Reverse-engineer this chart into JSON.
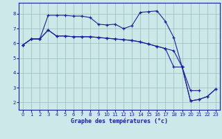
{
  "xlabel": "Graphe des températures (°c)",
  "background_color": "#cce8e8",
  "line_color": "#1c1c99",
  "grid_color": "#99bbbb",
  "hours": [
    0,
    1,
    2,
    3,
    4,
    5,
    6,
    7,
    8,
    9,
    10,
    11,
    12,
    13,
    14,
    15,
    16,
    17,
    18,
    19,
    20,
    21,
    22,
    23
  ],
  "series1": [
    5.9,
    6.3,
    6.3,
    7.9,
    7.9,
    7.9,
    7.85,
    7.85,
    7.75,
    7.3,
    7.25,
    7.3,
    7.0,
    7.2,
    8.1,
    8.15,
    8.2,
    7.5,
    6.4,
    4.4,
    2.8,
    2.8,
    null,
    null
  ],
  "series2": [
    5.9,
    6.3,
    6.3,
    6.9,
    6.5,
    6.5,
    6.45,
    6.45,
    6.45,
    6.4,
    6.35,
    6.3,
    6.25,
    6.2,
    6.1,
    5.95,
    5.8,
    5.65,
    5.5,
    4.4,
    2.1,
    2.2,
    2.4,
    2.9
  ],
  "series3": [
    5.9,
    6.3,
    6.3,
    6.9,
    6.5,
    6.5,
    6.45,
    6.45,
    6.45,
    6.4,
    6.35,
    6.3,
    6.25,
    6.2,
    6.1,
    5.95,
    5.8,
    5.65,
    4.4,
    4.4,
    2.1,
    2.2,
    2.4,
    2.9
  ],
  "ylim": [
    1.5,
    8.75
  ],
  "xlim": [
    -0.5,
    23.5
  ],
  "yticks": [
    2,
    3,
    4,
    5,
    6,
    7,
    8
  ],
  "xticks": [
    0,
    1,
    2,
    3,
    4,
    5,
    6,
    7,
    8,
    9,
    10,
    11,
    12,
    13,
    14,
    15,
    16,
    17,
    18,
    19,
    20,
    21,
    22,
    23
  ]
}
